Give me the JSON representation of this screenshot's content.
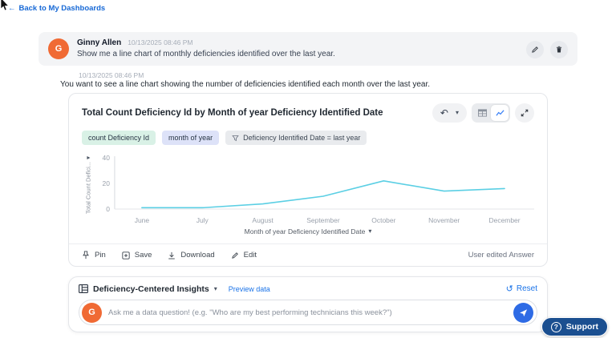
{
  "icons": {
    "back_arrow": "←",
    "chevron_down": "▾",
    "undo": "↶",
    "reset": "↺",
    "question": "?"
  },
  "back_link": {
    "label": "Back to My Dashboards"
  },
  "user_message": {
    "avatar_initial": "G",
    "name": "Ginny Allen",
    "timestamp": "10/13/2025 08:46 PM",
    "text": "Show me a line chart of monthly deficiencies identified over the last year."
  },
  "assistant": {
    "timestamp": "10/13/2025 08:46 PM",
    "text": "You want to see a line chart showing the number of deficiencies identified each month over the last year."
  },
  "chart_card": {
    "title": "Total Count Deficiency Id by Month of year Deficiency Identified Date",
    "chips": [
      {
        "label": "count Deficiency Id",
        "type": "measure"
      },
      {
        "label": "month of year",
        "type": "dimension"
      },
      {
        "label": "Deficiency Identified Date = last year",
        "type": "filter"
      }
    ],
    "actions": {
      "pin": "Pin",
      "save": "Save",
      "download": "Download",
      "edit": "Edit"
    },
    "status": "User edited Answer"
  },
  "chart_data": {
    "type": "line",
    "title": "Total Count Deficiency Id by Month of year Deficiency Identified Date",
    "categories": [
      "June",
      "July",
      "August",
      "September",
      "October",
      "November",
      "December"
    ],
    "values": [
      1,
      1,
      4,
      10,
      22,
      14,
      16
    ],
    "xlabel": "Month of year Deficiency Identified Date",
    "ylabel": "Total Count Defici...",
    "ylim": [
      0,
      40
    ],
    "yticks": [
      0,
      20,
      40
    ],
    "line_color": "#5bcfe4",
    "grid": false,
    "legend": false
  },
  "insights": {
    "title": "Deficiency-Centered Insights",
    "preview_link": "Preview data",
    "reset_label": "Reset",
    "avatar_initial": "G",
    "input_placeholder": "Ask me a data question! (e.g. \"Who are my best performing technicians this week?\")"
  },
  "support": {
    "label": "Support"
  },
  "colors": {
    "accent_blue": "#1a73e8",
    "line_cyan": "#5bcfe4",
    "avatar_orange": "#f06a34",
    "send_blue": "#2e6be5",
    "support_navy": "#1b4f90",
    "chip_green": "#d9f1e6",
    "chip_lavender": "#dde2f8",
    "chip_gray": "#e9ebee"
  }
}
